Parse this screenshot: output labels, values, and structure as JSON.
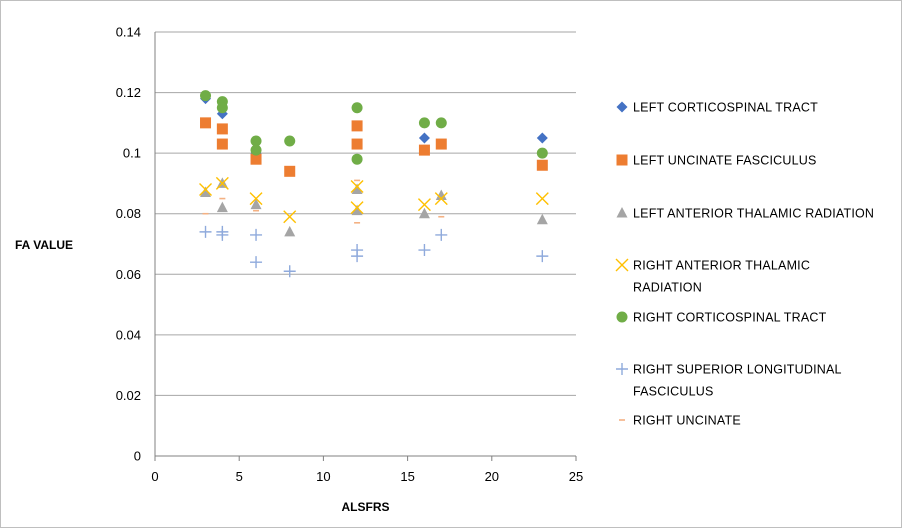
{
  "chart_data": {
    "type": "scatter",
    "title": "",
    "xlabel": "ALSFRS",
    "ylabel": "FA VALUE",
    "xlim": [
      0,
      25
    ],
    "ylim": [
      0,
      0.14
    ],
    "x_ticks": [
      "0",
      "5",
      "10",
      "15",
      "20",
      "25"
    ],
    "y_ticks": [
      "0",
      "0.02",
      "0.04",
      "0.06",
      "0.08",
      "0.1",
      "0.12",
      "0.14"
    ],
    "grid": "horizontal",
    "legend_position": "right",
    "series": [
      {
        "name_lines": [
          "LEFT CORTICOSPINAL TRACT"
        ],
        "marker": "diamond",
        "color": "#4472C4",
        "points": [
          [
            3,
            0.118
          ],
          [
            4,
            0.113
          ],
          [
            6,
            0.1
          ],
          [
            8,
            0.104
          ],
          [
            12,
            0.115
          ],
          [
            16,
            0.105
          ],
          [
            23,
            0.105
          ]
        ]
      },
      {
        "name_lines": [
          "LEFT UNCINATE FASCICULUS"
        ],
        "marker": "square",
        "color": "#ED7D31",
        "points": [
          [
            3,
            0.11
          ],
          [
            4,
            0.108
          ],
          [
            4,
            0.103
          ],
          [
            6,
            0.098
          ],
          [
            8,
            0.094
          ],
          [
            12,
            0.109
          ],
          [
            12,
            0.103
          ],
          [
            16,
            0.101
          ],
          [
            17,
            0.103
          ],
          [
            23,
            0.096
          ]
        ]
      },
      {
        "name_lines": [
          "LEFT ANTERIOR THALAMIC RADIATION"
        ],
        "marker": "triangle",
        "color": "#A5A5A5",
        "points": [
          [
            3,
            0.087
          ],
          [
            4,
            0.09
          ],
          [
            4,
            0.082
          ],
          [
            6,
            0.083
          ],
          [
            8,
            0.074
          ],
          [
            12,
            0.088
          ],
          [
            12,
            0.081
          ],
          [
            16,
            0.08
          ],
          [
            17,
            0.086
          ],
          [
            23,
            0.078
          ]
        ]
      },
      {
        "name_lines": [
          "RIGHT ANTERIOR THALAMIC",
          "RADIATION"
        ],
        "marker": "x",
        "color": "#FFC000",
        "points": [
          [
            3,
            0.088
          ],
          [
            4,
            0.09
          ],
          [
            6,
            0.085
          ],
          [
            8,
            0.079
          ],
          [
            12,
            0.089
          ],
          [
            12,
            0.082
          ],
          [
            16,
            0.083
          ],
          [
            17,
            0.085
          ],
          [
            23,
            0.085
          ]
        ]
      },
      {
        "name_lines": [
          "RIGHT CORTICOSPINAL TRACT"
        ],
        "marker": "circle",
        "color": "#70AD47",
        "points": [
          [
            3,
            0.119
          ],
          [
            4,
            0.117
          ],
          [
            4,
            0.115
          ],
          [
            6,
            0.104
          ],
          [
            6,
            0.101
          ],
          [
            8,
            0.104
          ],
          [
            12,
            0.115
          ],
          [
            12,
            0.098
          ],
          [
            16,
            0.11
          ],
          [
            17,
            0.11
          ],
          [
            23,
            0.1
          ]
        ]
      },
      {
        "name_lines": [
          "RIGHT SUPERIOR LONGITUDINAL",
          "FASCICULUS"
        ],
        "marker": "plus",
        "color": "#8FAADC",
        "points": [
          [
            3,
            0.074
          ],
          [
            4,
            0.074
          ],
          [
            4,
            0.073
          ],
          [
            6,
            0.073
          ],
          [
            6,
            0.064
          ],
          [
            8,
            0.061
          ],
          [
            12,
            0.068
          ],
          [
            12,
            0.066
          ],
          [
            16,
            0.068
          ],
          [
            17,
            0.073
          ],
          [
            23,
            0.066
          ]
        ]
      },
      {
        "name_lines": [
          "RIGHT UNCINATE"
        ],
        "marker": "dash",
        "color": "#F4B183",
        "points": [
          [
            3,
            0.08
          ],
          [
            4,
            0.085
          ],
          [
            6,
            0.081
          ],
          [
            12,
            0.091
          ],
          [
            12,
            0.077
          ],
          [
            17,
            0.079
          ]
        ]
      }
    ]
  }
}
